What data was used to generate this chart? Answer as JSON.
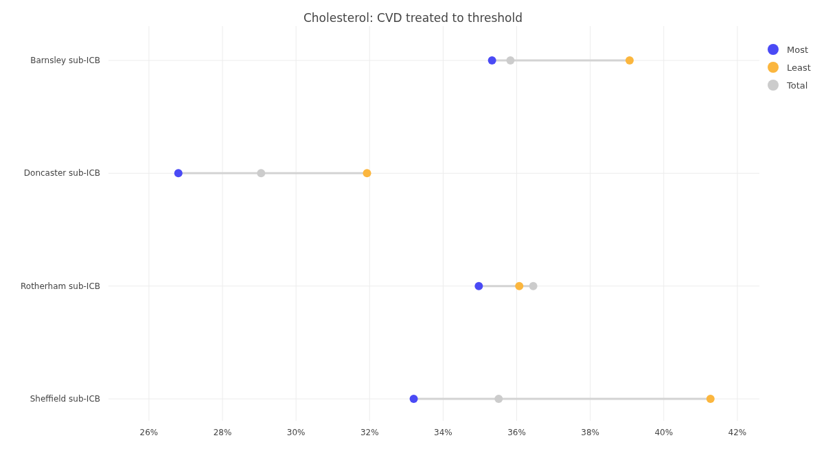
{
  "chart_data": {
    "type": "scatter",
    "title": "Cholesterol: CVD treated to threshold",
    "orientation": "horizontal",
    "categories": [
      "Barnsley sub-ICB",
      "Doncaster sub-ICB",
      "Rotherham sub-ICB",
      "Sheffield sub-ICB"
    ],
    "series": [
      {
        "name": "Most",
        "color": "#4a4af5",
        "values": [
          35.33,
          26.8,
          34.97,
          33.2
        ]
      },
      {
        "name": "Least",
        "color": "#fbb63e",
        "values": [
          39.07,
          31.93,
          36.07,
          41.27
        ]
      },
      {
        "name": "Total",
        "color": "#cccccc",
        "values": [
          35.83,
          29.05,
          36.45,
          35.51
        ]
      }
    ],
    "xlim": [
      24.9,
      42.6
    ],
    "xticks": [
      {
        "value": 26,
        "label": "26%"
      },
      {
        "value": 28,
        "label": "28%"
      },
      {
        "value": 30,
        "label": "30%"
      },
      {
        "value": 32,
        "label": "32%"
      },
      {
        "value": 34,
        "label": "34%"
      },
      {
        "value": 36,
        "label": "36%"
      },
      {
        "value": 38,
        "label": "38%"
      },
      {
        "value": 40,
        "label": "40%"
      },
      {
        "value": 42,
        "label": "42%"
      }
    ],
    "grid": true,
    "legend": "top right",
    "marker": "circle"
  }
}
